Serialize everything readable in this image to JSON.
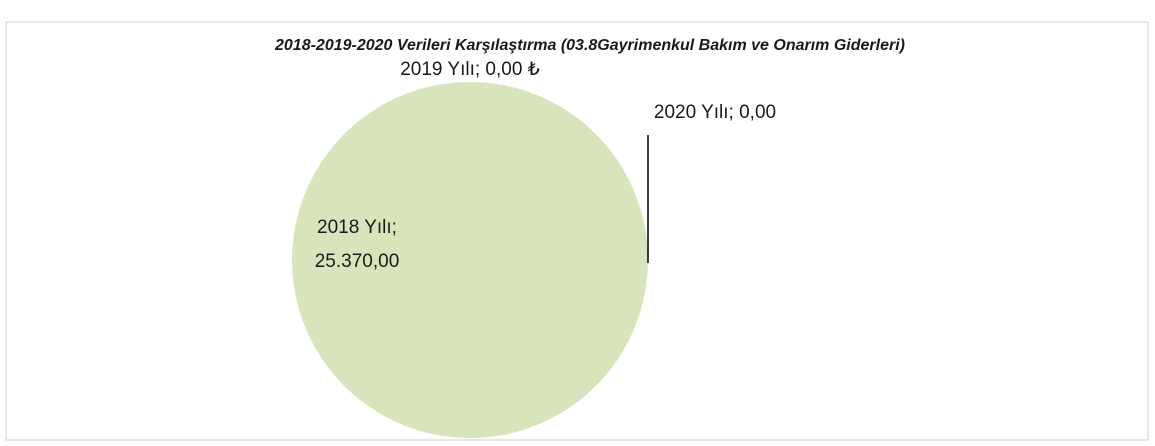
{
  "chart_data": {
    "type": "pie",
    "title": "2018-2019-2020 Verileri Karşılaştırma (03.8Gayrimenkul Bakım ve Onarım Giderleri)",
    "categories": [
      "2018 Yılı;",
      "2019 Yılı;",
      "2020 Yılı;"
    ],
    "values": [
      25370,
      0,
      0
    ],
    "value_labels": [
      "25.370,00",
      "0,00 ₺",
      "0,00"
    ],
    "colors": [
      "#d8e4bc",
      "#c3d69b",
      "#a9c47f"
    ]
  }
}
